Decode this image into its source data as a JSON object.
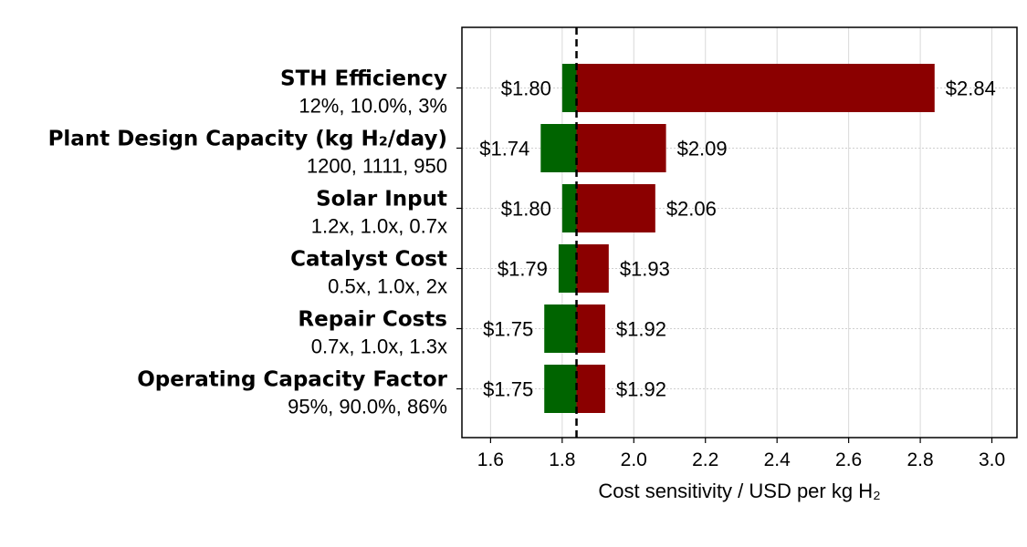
{
  "chart_data": {
    "type": "bar",
    "orientation": "horizontal",
    "title": "",
    "xlabel": "Cost sensitivity / USD per kg H₂",
    "xlim": [
      1.52,
      3.07
    ],
    "xticks": [
      "1.6",
      "1.8",
      "2.0",
      "2.2",
      "2.4",
      "2.6",
      "2.8",
      "3.0"
    ],
    "baseline": 1.84,
    "grid": true,
    "colors": {
      "low": "#006400",
      "high": "#8b0000",
      "baseline": "#000000"
    },
    "categories": [
      {
        "name": "STH Efficiency",
        "values": "12%, 10.0%, 3%",
        "low": 1.8,
        "high": 2.84,
        "low_label": "$1.80",
        "high_label": "$2.84"
      },
      {
        "name": "Plant Design Capacity (kg H₂/day)",
        "values": "1200, 1111, 950",
        "low": 1.74,
        "high": 2.09,
        "low_label": "$1.74",
        "high_label": "$2.09"
      },
      {
        "name": "Solar Input",
        "values": "1.2x, 1.0x, 0.7x",
        "low": 1.8,
        "high": 2.06,
        "low_label": "$1.80",
        "high_label": "$2.06"
      },
      {
        "name": "Catalyst Cost",
        "values": "0.5x, 1.0x, 2x",
        "low": 1.79,
        "high": 1.93,
        "low_label": "$1.79",
        "high_label": "$1.93"
      },
      {
        "name": "Repair Costs",
        "values": "0.7x, 1.0x, 1.3x",
        "low": 1.75,
        "high": 1.92,
        "low_label": "$1.75",
        "high_label": "$1.92"
      },
      {
        "name": "Operating Capacity Factor",
        "values": "95%, 90.0%, 86%",
        "low": 1.75,
        "high": 1.92,
        "low_label": "$1.75",
        "high_label": "$1.92"
      }
    ]
  }
}
